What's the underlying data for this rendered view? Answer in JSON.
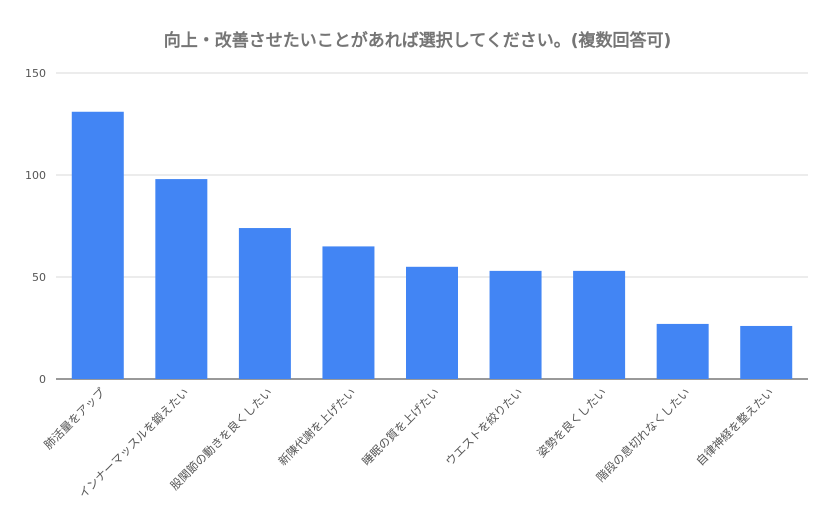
{
  "chart_data": {
    "type": "bar",
    "title": "向上・改善させたいことがあれば選択してください。(複数回答可)",
    "categories": [
      "肺活量をアップ",
      "インナーマッスルを鍛えたい",
      "股関節の動きを良くしたい",
      "新陳代謝を上げたい",
      "睡眠の質を上げたい",
      "ウエストを絞りたい",
      "姿勢を良くしたい",
      "階段の息切れなくしたい",
      "自律神経を整えたい"
    ],
    "values": [
      131,
      98,
      74,
      65,
      55,
      53,
      53,
      27,
      26
    ],
    "ylim": [
      0,
      150
    ],
    "yticks": [
      0,
      50,
      100,
      150
    ],
    "grid": true,
    "legend": "none",
    "bar_color": "#4285F4",
    "grid_color": "#d9d9d9",
    "text_color": "#555555"
  }
}
